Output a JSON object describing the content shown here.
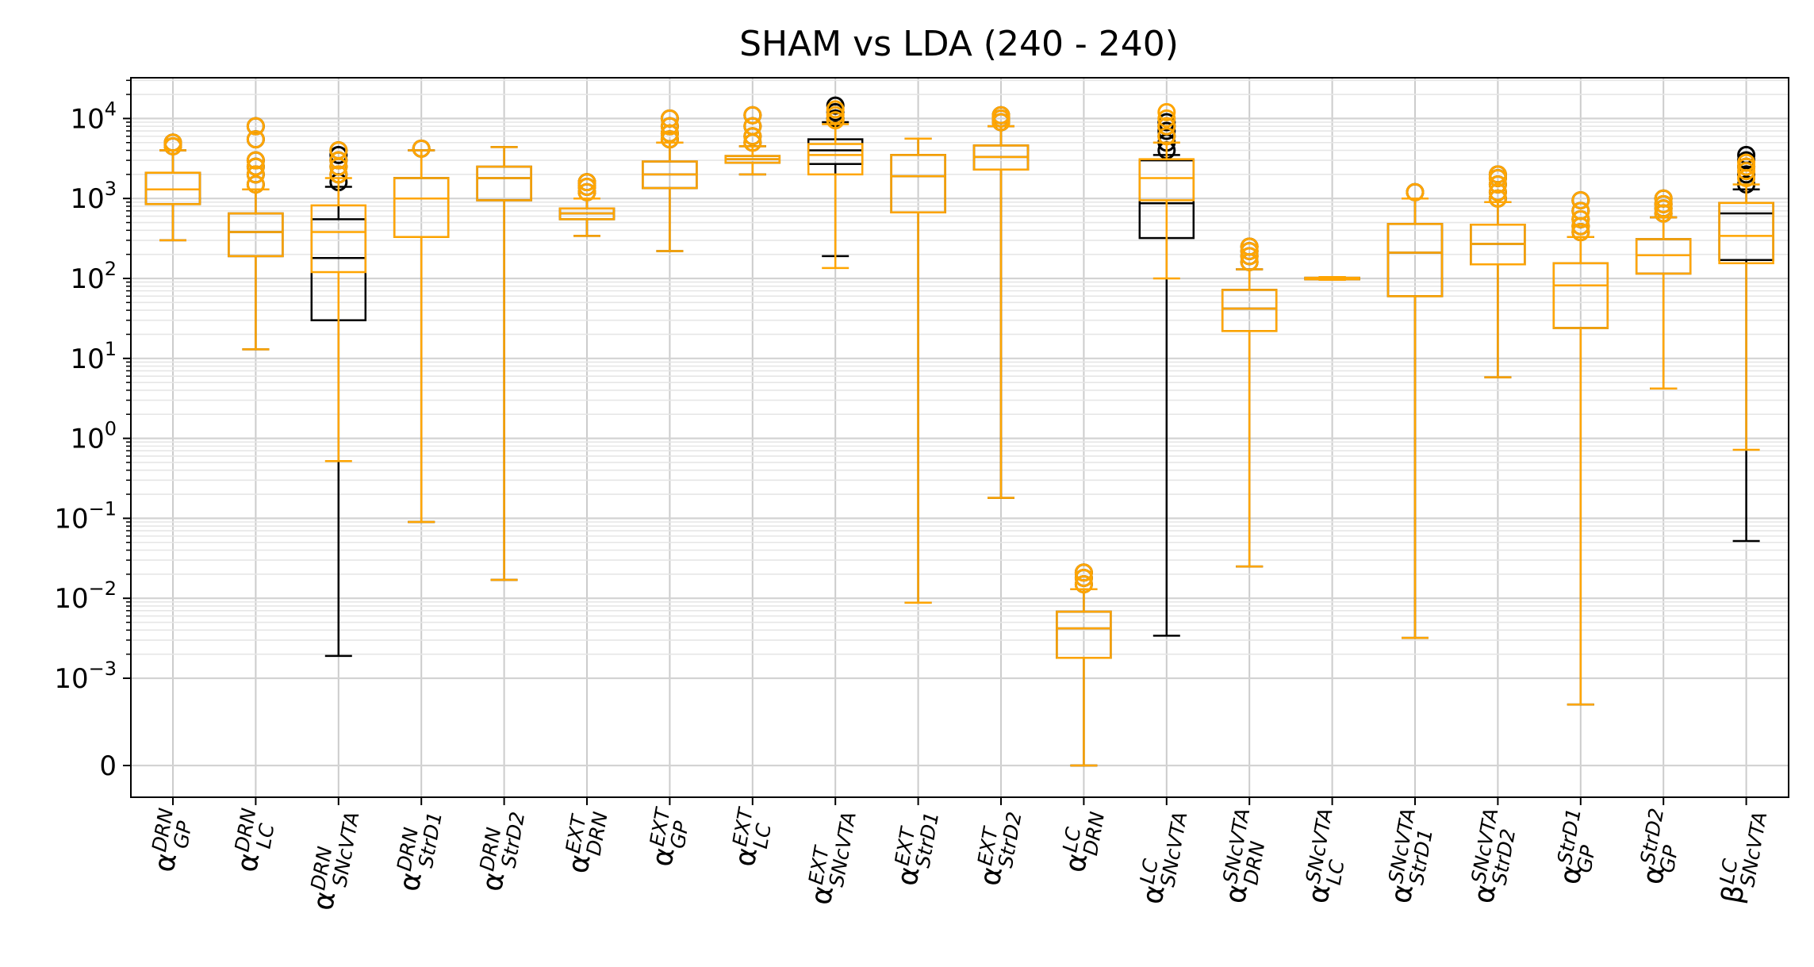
{
  "chart_data": {
    "type": "box",
    "title": "SHAM vs LDA (240 - 240)",
    "xlabel": "",
    "ylabel": "",
    "y_scale": "symlog",
    "y_ticks": [
      {
        "value": 10000,
        "label": "10",
        "exp": "4"
      },
      {
        "value": 1000,
        "label": "10",
        "exp": "3"
      },
      {
        "value": 100,
        "label": "10",
        "exp": "2"
      },
      {
        "value": 10,
        "label": "10",
        "exp": "1"
      },
      {
        "value": 1,
        "label": "10",
        "exp": "0"
      },
      {
        "value": 0.1,
        "label": "10",
        "exp": "−1"
      },
      {
        "value": 0.01,
        "label": "10",
        "exp": "−2"
      },
      {
        "value": 0.001,
        "label": "10",
        "exp": "−3"
      },
      {
        "value": 0,
        "label": "0",
        "exp": ""
      }
    ],
    "grid": true,
    "colors": {
      "SHAM": "#000000",
      "LDA": "#FFA500"
    },
    "categories": [
      {
        "symbol": "α",
        "sup": "DRN",
        "sub": "GP"
      },
      {
        "symbol": "α",
        "sup": "DRN",
        "sub": "LC"
      },
      {
        "symbol": "α",
        "sup": "DRN",
        "sub": "SNcVTA"
      },
      {
        "symbol": "α",
        "sup": "DRN",
        "sub": "StrD1"
      },
      {
        "symbol": "α",
        "sup": "DRN",
        "sub": "StrD2"
      },
      {
        "symbol": "α",
        "sup": "EXT",
        "sub": "DRN"
      },
      {
        "symbol": "α",
        "sup": "EXT",
        "sub": "GP"
      },
      {
        "symbol": "α",
        "sup": "EXT",
        "sub": "LC"
      },
      {
        "symbol": "α",
        "sup": "EXT",
        "sub": "SNcVTA"
      },
      {
        "symbol": "α",
        "sup": "EXT",
        "sub": "StrD1"
      },
      {
        "symbol": "α",
        "sup": "EXT",
        "sub": "StrD2"
      },
      {
        "symbol": "α",
        "sup": "LC",
        "sub": "DRN"
      },
      {
        "symbol": "α",
        "sup": "LC",
        "sub": "SNcVTA"
      },
      {
        "symbol": "α",
        "sup": "SNcVTA",
        "sub": "DRN"
      },
      {
        "symbol": "α",
        "sup": "SNcVTA",
        "sub": "LC"
      },
      {
        "symbol": "α",
        "sup": "SNcVTA",
        "sub": "StrD1"
      },
      {
        "symbol": "α",
        "sup": "SNcVTA",
        "sub": "StrD2"
      },
      {
        "symbol": "α",
        "sup": "StrD1",
        "sub": "GP"
      },
      {
        "symbol": "α",
        "sup": "StrD2",
        "sub": "GP"
      },
      {
        "symbol": "β",
        "sup": "LC",
        "sub": "SNcVTA"
      }
    ],
    "series": [
      {
        "group": "SHAM",
        "boxes": [
          {
            "q1": 850,
            "median": 1300,
            "q3": 2100,
            "whislo": 300,
            "whishi": 4000,
            "fliers": [
              4500,
              5000
            ]
          },
          {
            "q1": 190,
            "median": 380,
            "q3": 650,
            "whislo": 13,
            "whishi": 1300,
            "fliers": [
              1500,
              2000,
              2500,
              3000,
              5500,
              8000
            ]
          },
          {
            "q1": 30,
            "median": 180,
            "q3": 550,
            "whislo": 0.0019,
            "whishi": 1400,
            "fliers": [
              1600,
              2000,
              2500,
              3000,
              3500,
              4000
            ]
          },
          {
            "q1": 330,
            "median": 1000,
            "q3": 1800,
            "whislo": 0.09,
            "whishi": 4000,
            "fliers": [
              4200
            ]
          },
          {
            "q1": 950,
            "median": 1800,
            "q3": 2500,
            "whislo": 0.017,
            "whishi": 4400,
            "fliers": []
          },
          {
            "q1": 550,
            "median": 650,
            "q3": 750,
            "whislo": 340,
            "whishi": 1000,
            "fliers": [
              1200,
              1400,
              1600
            ]
          },
          {
            "q1": 1350,
            "median": 2000,
            "q3": 2900,
            "whislo": 220,
            "whishi": 5000,
            "fliers": [
              5500,
              6500,
              8000,
              10000
            ]
          },
          {
            "q1": 2800,
            "median": 3100,
            "q3": 3400,
            "whislo": 2000,
            "whishi": 4500,
            "fliers": [
              5000,
              6000,
              8000,
              11000
            ]
          },
          {
            "q1": 2700,
            "median": 4000,
            "q3": 5500,
            "whislo": 190,
            "whishi": 9000,
            "fliers": [
              10000,
              12000,
              14500
            ]
          },
          {
            "q1": 670,
            "median": 1900,
            "q3": 3500,
            "whislo": 0.0088,
            "whishi": 5600,
            "fliers": []
          },
          {
            "q1": 2300,
            "median": 3300,
            "q3": 4600,
            "whislo": 0.18,
            "whishi": 8000,
            "fliers": [
              9000,
              10000,
              11000
            ]
          },
          {
            "q1": 0.0018,
            "median": 0.0042,
            "q3": 0.0068,
            "whislo": 1e-05,
            "whishi": 0.013,
            "fliers": [
              0.015,
              0.018,
              0.021
            ]
          },
          {
            "q1": 320,
            "median": 870,
            "q3": 3000,
            "whislo": 0.0034,
            "whishi": 3500,
            "fliers": [
              4000,
              5000,
              6000,
              7000,
              8000,
              9000
            ]
          },
          {
            "q1": 22,
            "median": 42,
            "q3": 72,
            "whislo": 0.025,
            "whishi": 130,
            "fliers": [
              160,
              190,
              220,
              250
            ]
          },
          {
            "q1": 98,
            "median": 100,
            "q3": 102,
            "whislo": 96,
            "whishi": 104,
            "fliers": []
          },
          {
            "q1": 60,
            "median": 210,
            "q3": 480,
            "whislo": 0.0032,
            "whishi": 1000,
            "fliers": [
              1200
            ]
          },
          {
            "q1": 150,
            "median": 270,
            "q3": 470,
            "whislo": 5.8,
            "whishi": 900,
            "fliers": [
              1000,
              1200,
              1500,
              1800,
              2000
            ]
          },
          {
            "q1": 24,
            "median": 82,
            "q3": 155,
            "whislo": 0.0005,
            "whishi": 330,
            "fliers": [
              380,
              450,
              550,
              700,
              950
            ]
          },
          {
            "q1": 115,
            "median": 195,
            "q3": 310,
            "whislo": 4.2,
            "whishi": 580,
            "fliers": [
              650,
              750,
              850,
              1000
            ]
          },
          {
            "q1": 170,
            "median": 650,
            "q3": 880,
            "whislo": 0.052,
            "whishi": 1300,
            "fliers": [
              1500,
              2000,
              2500,
              3000,
              3500
            ]
          }
        ]
      },
      {
        "group": "LDA",
        "boxes": [
          {
            "q1": 850,
            "median": 1300,
            "q3": 2100,
            "whislo": 300,
            "whishi": 4000,
            "fliers": [
              4500,
              5000
            ]
          },
          {
            "q1": 190,
            "median": 380,
            "q3": 650,
            "whislo": 13,
            "whishi": 1300,
            "fliers": [
              1500,
              2000,
              2500,
              3000,
              5500,
              8000
            ]
          },
          {
            "q1": 120,
            "median": 380,
            "q3": 820,
            "whislo": 0.52,
            "whishi": 1800,
            "fliers": [
              2000,
              2500,
              3000,
              4000
            ]
          },
          {
            "q1": 330,
            "median": 1000,
            "q3": 1800,
            "whislo": 0.09,
            "whishi": 4000,
            "fliers": [
              4200
            ]
          },
          {
            "q1": 950,
            "median": 1800,
            "q3": 2500,
            "whislo": 0.017,
            "whishi": 4400,
            "fliers": []
          },
          {
            "q1": 550,
            "median": 650,
            "q3": 750,
            "whislo": 340,
            "whishi": 1000,
            "fliers": [
              1200,
              1400,
              1600
            ]
          },
          {
            "q1": 1350,
            "median": 2000,
            "q3": 2900,
            "whislo": 220,
            "whishi": 5000,
            "fliers": [
              5500,
              6500,
              8000,
              10000
            ]
          },
          {
            "q1": 2800,
            "median": 3100,
            "q3": 3400,
            "whislo": 2000,
            "whishi": 4500,
            "fliers": [
              5000,
              6000,
              8000,
              11000
            ]
          },
          {
            "q1": 2000,
            "median": 3500,
            "q3": 4800,
            "whislo": 135,
            "whishi": 8500,
            "fliers": [
              9500,
              11000,
              13000
            ]
          },
          {
            "q1": 670,
            "median": 1900,
            "q3": 3500,
            "whislo": 0.0088,
            "whishi": 5600,
            "fliers": []
          },
          {
            "q1": 2300,
            "median": 3300,
            "q3": 4600,
            "whislo": 0.18,
            "whishi": 8000,
            "fliers": [
              9000,
              10000,
              11000
            ]
          },
          {
            "q1": 0.0018,
            "median": 0.0042,
            "q3": 0.0068,
            "whislo": 1e-05,
            "whishi": 0.013,
            "fliers": [
              0.015,
              0.018,
              0.021
            ]
          },
          {
            "q1": 950,
            "median": 1800,
            "q3": 3100,
            "whislo": 100,
            "whishi": 5000,
            "fliers": [
              6000,
              8000,
              10000,
              12000
            ]
          },
          {
            "q1": 22,
            "median": 42,
            "q3": 72,
            "whislo": 0.025,
            "whishi": 130,
            "fliers": [
              160,
              190,
              220,
              250
            ]
          },
          {
            "q1": 98,
            "median": 100,
            "q3": 102,
            "whislo": 96,
            "whishi": 104,
            "fliers": []
          },
          {
            "q1": 60,
            "median": 210,
            "q3": 480,
            "whislo": 0.0032,
            "whishi": 1000,
            "fliers": [
              1200
            ]
          },
          {
            "q1": 150,
            "median": 270,
            "q3": 470,
            "whislo": 5.8,
            "whishi": 900,
            "fliers": [
              1000,
              1200,
              1500,
              1800,
              2000
            ]
          },
          {
            "q1": 24,
            "median": 82,
            "q3": 155,
            "whislo": 0.0005,
            "whishi": 330,
            "fliers": [
              380,
              450,
              550,
              700,
              950
            ]
          },
          {
            "q1": 115,
            "median": 195,
            "q3": 310,
            "whislo": 4.2,
            "whishi": 580,
            "fliers": [
              650,
              750,
              850,
              1000
            ]
          },
          {
            "q1": 155,
            "median": 340,
            "q3": 880,
            "whislo": 0.72,
            "whishi": 1500,
            "fliers": [
              1800,
              2200,
              2500,
              2800
            ]
          }
        ]
      }
    ]
  }
}
